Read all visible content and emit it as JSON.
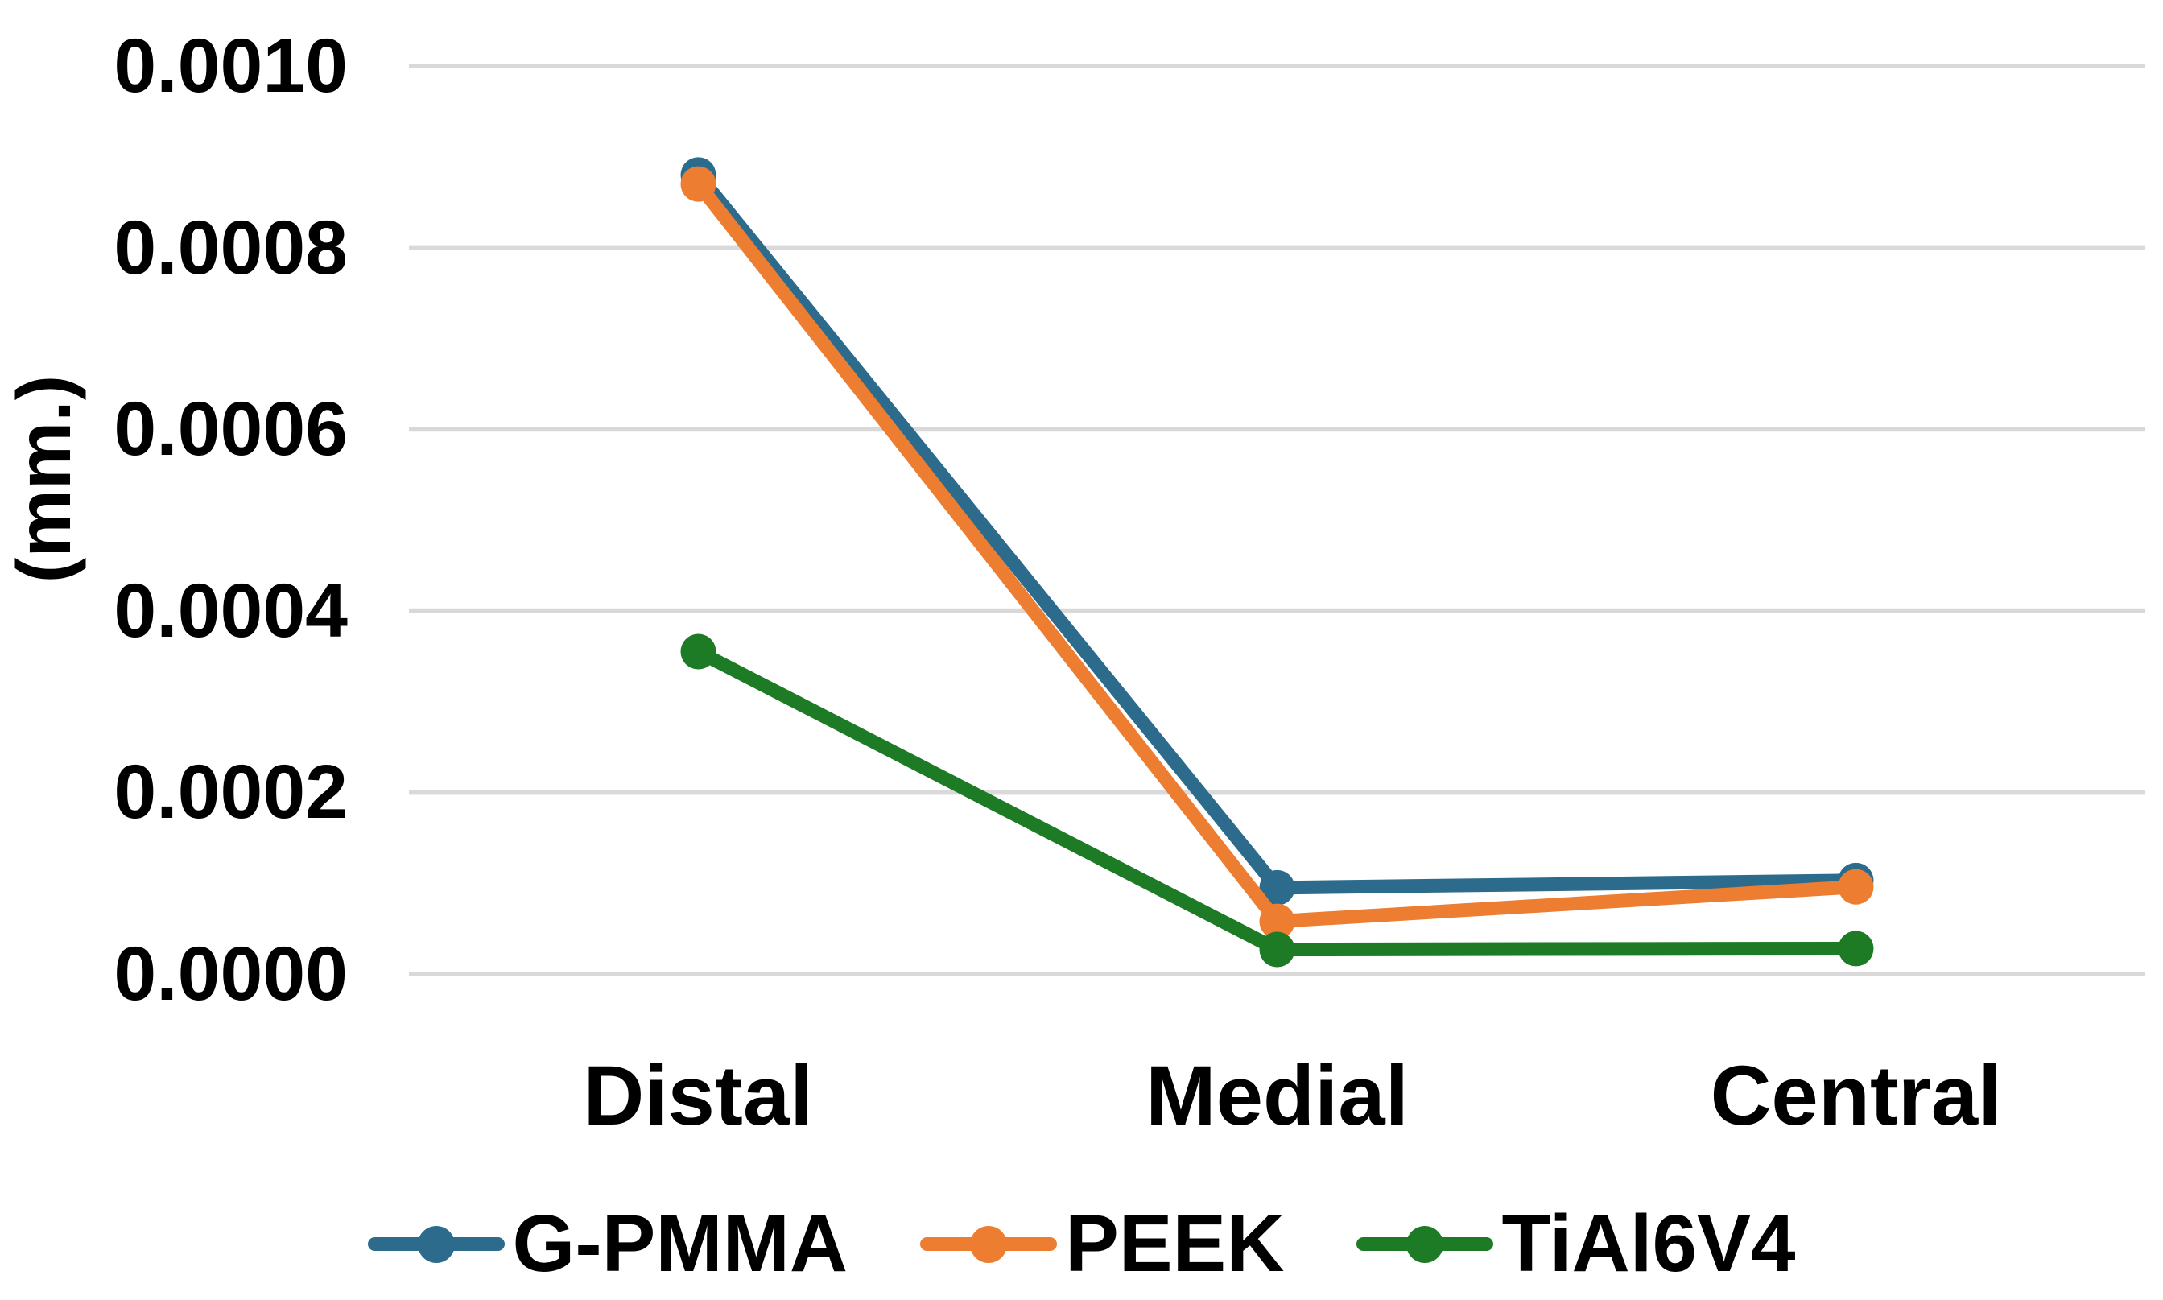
{
  "figure": {
    "background_color": "#ffffff",
    "text_color": "#000000"
  },
  "chart_data": {
    "type": "line",
    "title": "",
    "xlabel": "",
    "ylabel": "(mm.)",
    "categories": [
      "Distal",
      "Medial",
      "Central"
    ],
    "series": [
      {
        "name": "G-PMMA",
        "color": "#2C6B8C",
        "values": [
          0.00088,
          9.5e-05,
          0.000103
        ]
      },
      {
        "name": "PEEK",
        "color": "#ED7D31",
        "values": [
          0.00087,
          5.8e-05,
          9.6e-05
        ]
      },
      {
        "name": "TiAl6V4",
        "color": "#1E7B25",
        "values": [
          0.000355,
          2.7e-05,
          2.8e-05
        ]
      }
    ],
    "ylim": [
      0,
      0.001
    ],
    "ytick_step": 0.0002,
    "ytick_labels": [
      "0.0000",
      "0.0002",
      "0.0004",
      "0.0006",
      "0.0008",
      "0.0010"
    ],
    "grid": true,
    "gridline_color": "#D9D9D9",
    "legend_position": "bottom",
    "marker": "circle"
  }
}
